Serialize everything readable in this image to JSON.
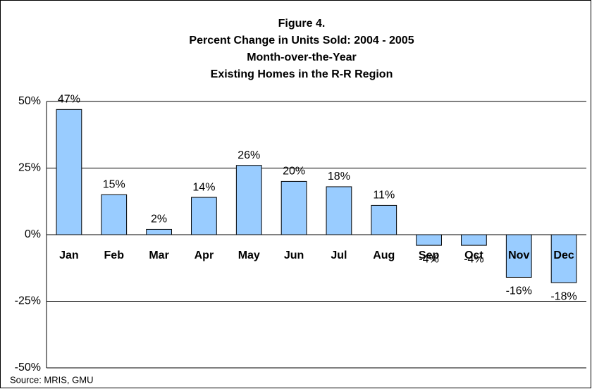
{
  "chart_data": {
    "type": "bar",
    "title": [
      "Figure 4.",
      "Percent Change in Units Sold: 2004 - 2005",
      "Month-over-the-Year",
      "Existing Homes in the R-R Region"
    ],
    "categories": [
      "Jan",
      "Feb",
      "Mar",
      "Apr",
      "May",
      "Jun",
      "Jul",
      "Aug",
      "Sep",
      "Oct",
      "Nov",
      "Dec"
    ],
    "values": [
      47,
      15,
      2,
      14,
      26,
      20,
      18,
      11,
      -4,
      -4,
      -16,
      -18
    ],
    "value_labels": [
      "47%",
      "15%",
      "2%",
      "14%",
      "26%",
      "20%",
      "18%",
      "11%",
      "-4%",
      "-4%",
      "-16%",
      "-18%"
    ],
    "color": "#99ccff",
    "ylim": [
      -50,
      50
    ],
    "yticks": [
      {
        "value": -50,
        "label": "-50%"
      },
      {
        "value": -25,
        "label": "-25%"
      },
      {
        "value": 0,
        "label": "0%"
      },
      {
        "value": 25,
        "label": "25%"
      },
      {
        "value": 50,
        "label": "50%"
      }
    ],
    "grid": true,
    "source": "Source: MRIS, GMU"
  }
}
